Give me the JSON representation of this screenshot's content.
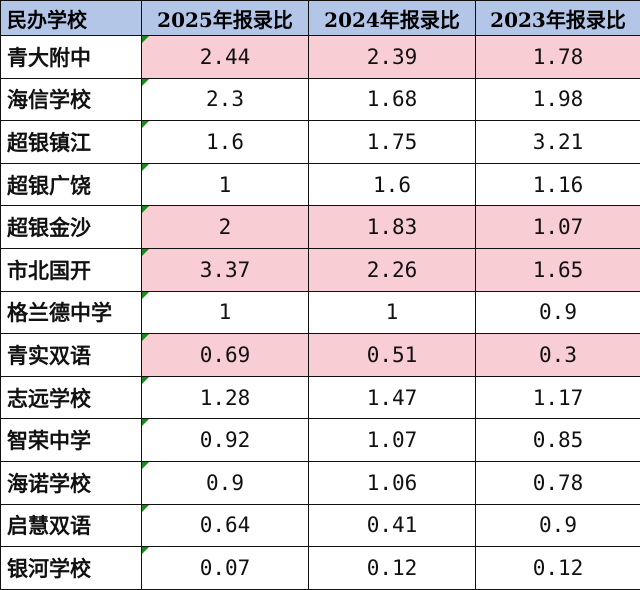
{
  "colors": {
    "header_bg": "#b4c6e7",
    "highlight_bg": "#f8cdd4",
    "marker": "#1a8a1a"
  },
  "table": {
    "headers": [
      "民办学校",
      "2025年报录比",
      "2024年报录比",
      "2023年报录比"
    ],
    "rows": [
      {
        "name": "青大附中",
        "y2025": "2.44",
        "y2024": "2.39",
        "y2023": "1.78",
        "highlight": true
      },
      {
        "name": "海信学校",
        "y2025": "2.3",
        "y2024": "1.68",
        "y2023": "1.98",
        "highlight": false
      },
      {
        "name": "超银镇江",
        "y2025": "1.6",
        "y2024": "1.75",
        "y2023": "3.21",
        "highlight": false
      },
      {
        "name": "超银广饶",
        "y2025": "1",
        "y2024": "1.6",
        "y2023": "1.16",
        "highlight": false
      },
      {
        "name": "超银金沙",
        "y2025": "2",
        "y2024": "1.83",
        "y2023": "1.07",
        "highlight": true
      },
      {
        "name": "市北国开",
        "y2025": "3.37",
        "y2024": "2.26",
        "y2023": "1.65",
        "highlight": true
      },
      {
        "name": "格兰德中学",
        "y2025": "1",
        "y2024": "1",
        "y2023": "0.9",
        "highlight": false
      },
      {
        "name": "青实双语",
        "y2025": "0.69",
        "y2024": "0.51",
        "y2023": "0.3",
        "highlight": true
      },
      {
        "name": "志远学校",
        "y2025": "1.28",
        "y2024": "1.47",
        "y2023": "1.17",
        "highlight": false
      },
      {
        "name": "智荣中学",
        "y2025": "0.92",
        "y2024": "1.07",
        "y2023": "0.85",
        "highlight": false
      },
      {
        "name": "海诺学校",
        "y2025": "0.9",
        "y2024": "1.06",
        "y2023": "0.78",
        "highlight": false
      },
      {
        "name": "启慧双语",
        "y2025": "0.64",
        "y2024": "0.41",
        "y2023": "0.9",
        "highlight": false
      },
      {
        "name": "银河学校",
        "y2025": "0.07",
        "y2024": "0.12",
        "y2023": "0.12",
        "highlight": false
      }
    ]
  }
}
